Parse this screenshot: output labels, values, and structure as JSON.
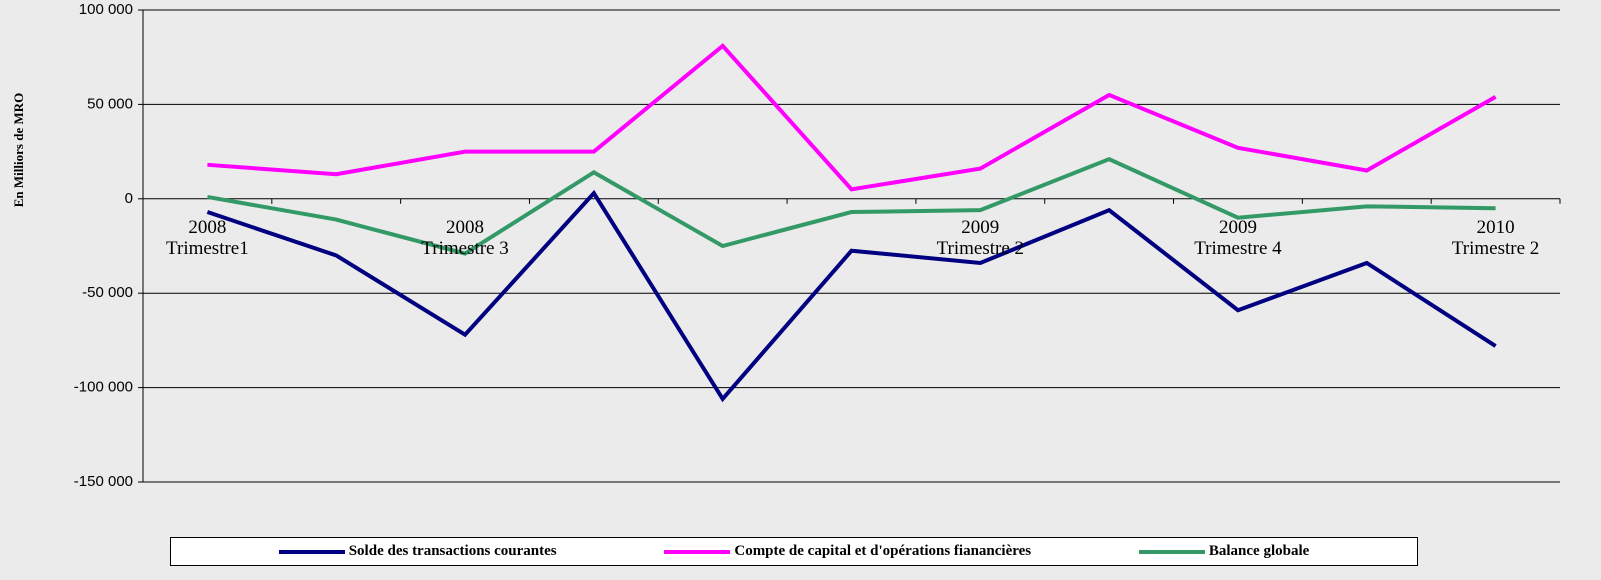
{
  "chart_data": {
    "type": "line",
    "ylabel": "En Milliors de MRO",
    "categories": [
      "2008\nTrimestre1",
      null,
      "2008\nTrimestre 3",
      null,
      null,
      null,
      "2009\nTrimestre 2",
      null,
      "2009\nTrimestre 4",
      null,
      "2010\nTrimestre 2"
    ],
    "series": [
      {
        "name": "Solde des transactions courantes",
        "color": "#000080",
        "values": [
          -7000,
          -30000,
          -72000,
          3000,
          -106000,
          -27500,
          -34000,
          -6000,
          -59000,
          -34000,
          -78000
        ]
      },
      {
        "name": "Compte de capital et d'opérations fianancières",
        "color": "#ff00ff",
        "values": [
          18000,
          13000,
          25000,
          25000,
          81000,
          5000,
          16000,
          55000,
          27000,
          15000,
          54000
        ]
      },
      {
        "name": "Balance globale",
        "color": "#339966",
        "values": [
          1000,
          -11000,
          -29000,
          14000,
          -25000,
          -7000,
          -6000,
          21000,
          -10000,
          -4000,
          -5000
        ]
      }
    ],
    "ylim": [
      -150000,
      100000
    ],
    "yticks": [
      {
        "value": -150000,
        "label": "-150 000"
      },
      {
        "value": -100000,
        "label": "-100 000"
      },
      {
        "value": -50000,
        "label": "-50 000"
      },
      0,
      {
        "value": 50000,
        "label": "50 000"
      },
      {
        "value": 100000,
        "label": "100 000"
      }
    ],
    "grid": true
  }
}
